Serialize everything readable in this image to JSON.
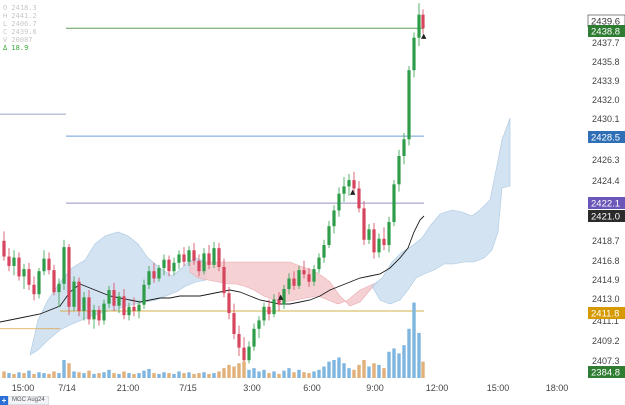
{
  "ohlc": {
    "open_label": "O 2418.3",
    "high_label": "H 2441.2",
    "low_label": "L 2406.7",
    "close_label": "C 2439.6",
    "volume_label": "V 20087",
    "change_label": "Δ 18.9"
  },
  "footer": {
    "add_label": "+",
    "symbol": "MGC Aug24"
  },
  "price_axis": {
    "ticks": [
      "2437.7",
      "2435.8",
      "2433.9",
      "2432.0",
      "2430.1",
      "2426.3",
      "2424.4",
      "2418.7",
      "2416.8",
      "2414.9",
      "2413.0",
      "2411.1",
      "2409.2",
      "2407.3"
    ],
    "badges": [
      {
        "name": "last-price-badge",
        "text": "2439.6",
        "bg": "#ffffff",
        "fg": "#333333",
        "border": "#333333"
      },
      {
        "name": "close-badge",
        "text": "2438.8",
        "bg": "#2e7d32",
        "fg": "#ffffff"
      },
      {
        "name": "blue-line-badge",
        "text": "2428.5",
        "bg": "#2f6fb6",
        "fg": "#ffffff"
      },
      {
        "name": "purple-line-badge",
        "text": "2422.1",
        "bg": "#6a55b8",
        "fg": "#ffffff"
      },
      {
        "name": "ma-badge",
        "text": "2421.0",
        "bg": "#2b2b2b",
        "fg": "#ffffff"
      },
      {
        "name": "gold-line-badge",
        "text": "2411.8",
        "bg": "#d69a00",
        "fg": "#ffffff"
      },
      {
        "name": "volume-badge",
        "text": "2384.8",
        "bg": "#2e7d32",
        "fg": "#ffffff"
      }
    ]
  },
  "time_axis": {
    "labels": [
      "15:00",
      "7/14",
      "21:00",
      "7/15",
      "3:00",
      "6:00",
      "9:00",
      "12:00",
      "15:00",
      "18:00"
    ]
  },
  "colors": {
    "up": "#2e9d4a",
    "down": "#d6455d",
    "cloud_bull": "#bcd6ea",
    "cloud_bear": "#f2c2c6",
    "volume_up": "#7fb6e0",
    "volume_down": "#e2b07a"
  },
  "chart_data": {
    "type": "line",
    "ylim": [
      2405.4,
      2441.5
    ],
    "x": [
      "15:00",
      "7/14",
      "21:00",
      "7/15",
      "3:00",
      "6:00",
      "9:00"
    ],
    "series": [],
    "horizontal_levels": [
      2438.8,
      2428.5,
      2422.1,
      2411.8
    ]
  }
}
